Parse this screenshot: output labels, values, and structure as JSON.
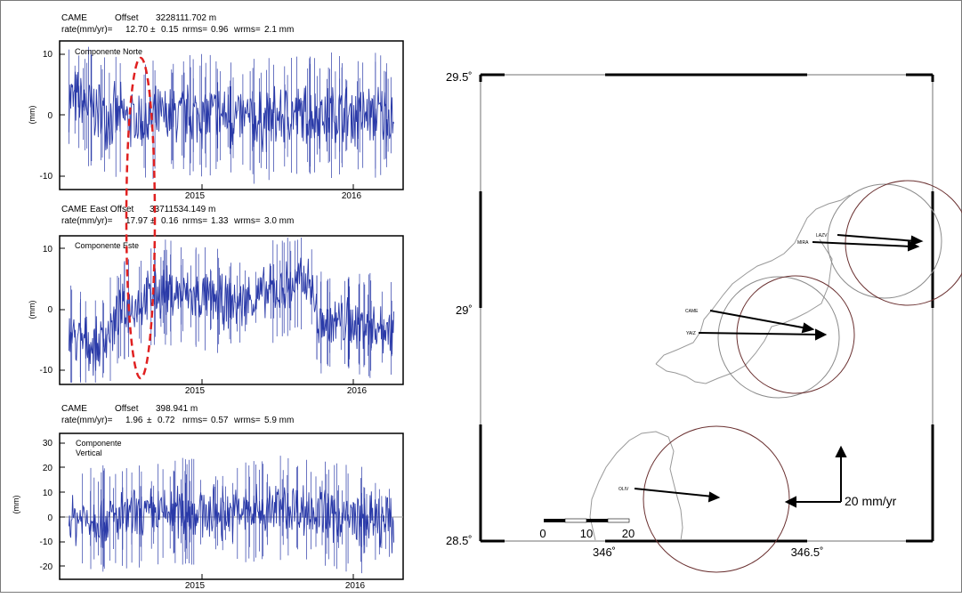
{
  "figure": {
    "panels": [
      {
        "id": "north",
        "header_line1": {
          "station": "CAME",
          "offset_label": "Offset",
          "offset_value": "3228111.702 m"
        },
        "header_line2": {
          "rate_label": "rate(mm/yr)=",
          "rate": "12.70",
          "pm": "±",
          "sigma": "0.15",
          "nrms_label": "nrms=",
          "nrms": "0.96",
          "wrms_label": "wrms=",
          "wrms": "2.1 mm"
        },
        "component_label": [
          "Componente Norte"
        ],
        "ylabel": "(mm)",
        "y_ticks": [
          "10",
          "0",
          "-10"
        ],
        "x_ticks": [
          "2015",
          "2016"
        ]
      },
      {
        "id": "east",
        "header_line1": {
          "station": "CAME",
          "offset_label": "East Offset",
          "offset_value": "33711534.149 m"
        },
        "header_line2": {
          "rate_label": "rate(mm/yr)=",
          "rate": "17.97",
          "pm": "±",
          "sigma": "0.16",
          "nrms_label": "nrms=",
          "nrms": "1.33",
          "wrms_label": "wrms=",
          "wrms": "3.0 mm"
        },
        "component_label": [
          "Componente Este"
        ],
        "ylabel": "(mm)",
        "y_ticks": [
          "10",
          "0",
          "-10"
        ],
        "x_ticks": [
          "2015",
          "2016"
        ]
      },
      {
        "id": "vertical",
        "header_line1": {
          "station": "CAME",
          "offset_label": "Offset",
          "offset_value": "398.941 m"
        },
        "header_line2": {
          "rate_label": "rate(mm/yr)=",
          "rate": "1.96",
          "pm": "±",
          "sigma": "0.72",
          "nrms_label": "nrms=",
          "nrms": "0.57",
          "wrms_label": "wrms=",
          "wrms": "5.9 mm"
        },
        "component_label": [
          "Componente",
          "Vertical"
        ],
        "ylabel": "(mm)",
        "y_ticks": [
          "30",
          "20",
          "10",
          "0",
          "-10",
          "-20"
        ],
        "x_ticks": [
          "2015",
          "2016"
        ]
      }
    ],
    "map": {
      "lat_ticks": [
        "29.5˚",
        "29˚",
        "28.5˚"
      ],
      "lon_ticks": [
        "346˚",
        "346.5˚"
      ],
      "stations": [
        "LAZV",
        "MIRA",
        "CAME",
        "YAIZ",
        "OLIV"
      ],
      "scale_arrow_label": "20 mm/yr",
      "scale_bar_labels": [
        "0",
        "10",
        "20"
      ]
    }
  },
  "chart_data": [
    {
      "type": "line",
      "title": "Componente Norte",
      "ylabel": "(mm)",
      "xlim": [
        2014.45,
        2016.3
      ],
      "ylim": [
        -12,
        12
      ],
      "x_ticks": [
        2015,
        2016
      ],
      "y_ticks": [
        10,
        0,
        -10
      ],
      "series_color": "#2a3aa8",
      "series": [
        {
          "x": [
            2014.5,
            2014.7,
            2014.9,
            2015.1,
            2015.3,
            2015.5,
            2015.7,
            2015.9,
            2016.1,
            2016.25
          ],
          "y": [
            3,
            0,
            -1,
            0,
            0,
            -1,
            0,
            0,
            0,
            0
          ]
        }
      ],
      "annotation": "red dashed ellipse"
    },
    {
      "type": "line",
      "title": "Componente Este",
      "ylabel": "(mm)",
      "xlim": [
        2014.45,
        2016.3
      ],
      "ylim": [
        -12,
        12
      ],
      "x_ticks": [
        2015,
        2016
      ],
      "y_ticks": [
        10,
        0,
        -10
      ],
      "series_color": "#2a3aa8",
      "series": [
        {
          "x": [
            2014.5,
            2014.65,
            2014.8,
            2015.0,
            2015.2,
            2015.4,
            2015.6,
            2015.8,
            2015.84,
            2016.0,
            2016.25
          ],
          "y": [
            -4,
            -6,
            0,
            3,
            2,
            1,
            3,
            5,
            -2,
            -2,
            -3
          ]
        }
      ]
    },
    {
      "type": "line",
      "title": "Componente Vertical",
      "ylabel": "(mm)",
      "xlim": [
        2014.45,
        2016.3
      ],
      "ylim": [
        -25,
        35
      ],
      "x_ticks": [
        2015,
        2016
      ],
      "y_ticks": [
        30,
        20,
        10,
        0,
        -10,
        -20
      ],
      "series_color": "#2a3aa8",
      "series": [
        {
          "x": [
            2014.5,
            2014.8,
            2015.1,
            2015.4,
            2015.7,
            2016.0,
            2016.25
          ],
          "y": [
            0,
            0,
            3,
            2,
            5,
            0,
            -2
          ]
        }
      ]
    },
    {
      "type": "scatter",
      "title": "",
      "xlim": [
        345.8,
        346.75
      ],
      "ylim": [
        28.5,
        29.5
      ],
      "x_ticks": [
        346,
        346.5
      ],
      "y_ticks": [
        29.5,
        29,
        28.5
      ],
      "stations": [
        {
          "name": "LAZV",
          "lon": 346.55,
          "lat": 29.18,
          "ve": 17.5,
          "vn": -0.4
        },
        {
          "name": "MIRA",
          "lon": 346.52,
          "lat": 29.16,
          "ve": 18.0,
          "vn": -0.2
        },
        {
          "name": "CAME",
          "lon": 346.08,
          "lat": 28.98,
          "ve": 20.0,
          "vn": -2.4
        },
        {
          "name": "YAIZ",
          "lon": 346.08,
          "lat": 28.96,
          "ve": 17.0,
          "vn": -0.2
        },
        {
          "name": "OLIV",
          "lon": 345.9,
          "lat": 28.63,
          "ve": 14.0,
          "vn": -1.2
        }
      ],
      "scale_arrow_mm_yr": 20,
      "scale_bar_km": [
        0,
        10,
        20
      ]
    }
  ]
}
